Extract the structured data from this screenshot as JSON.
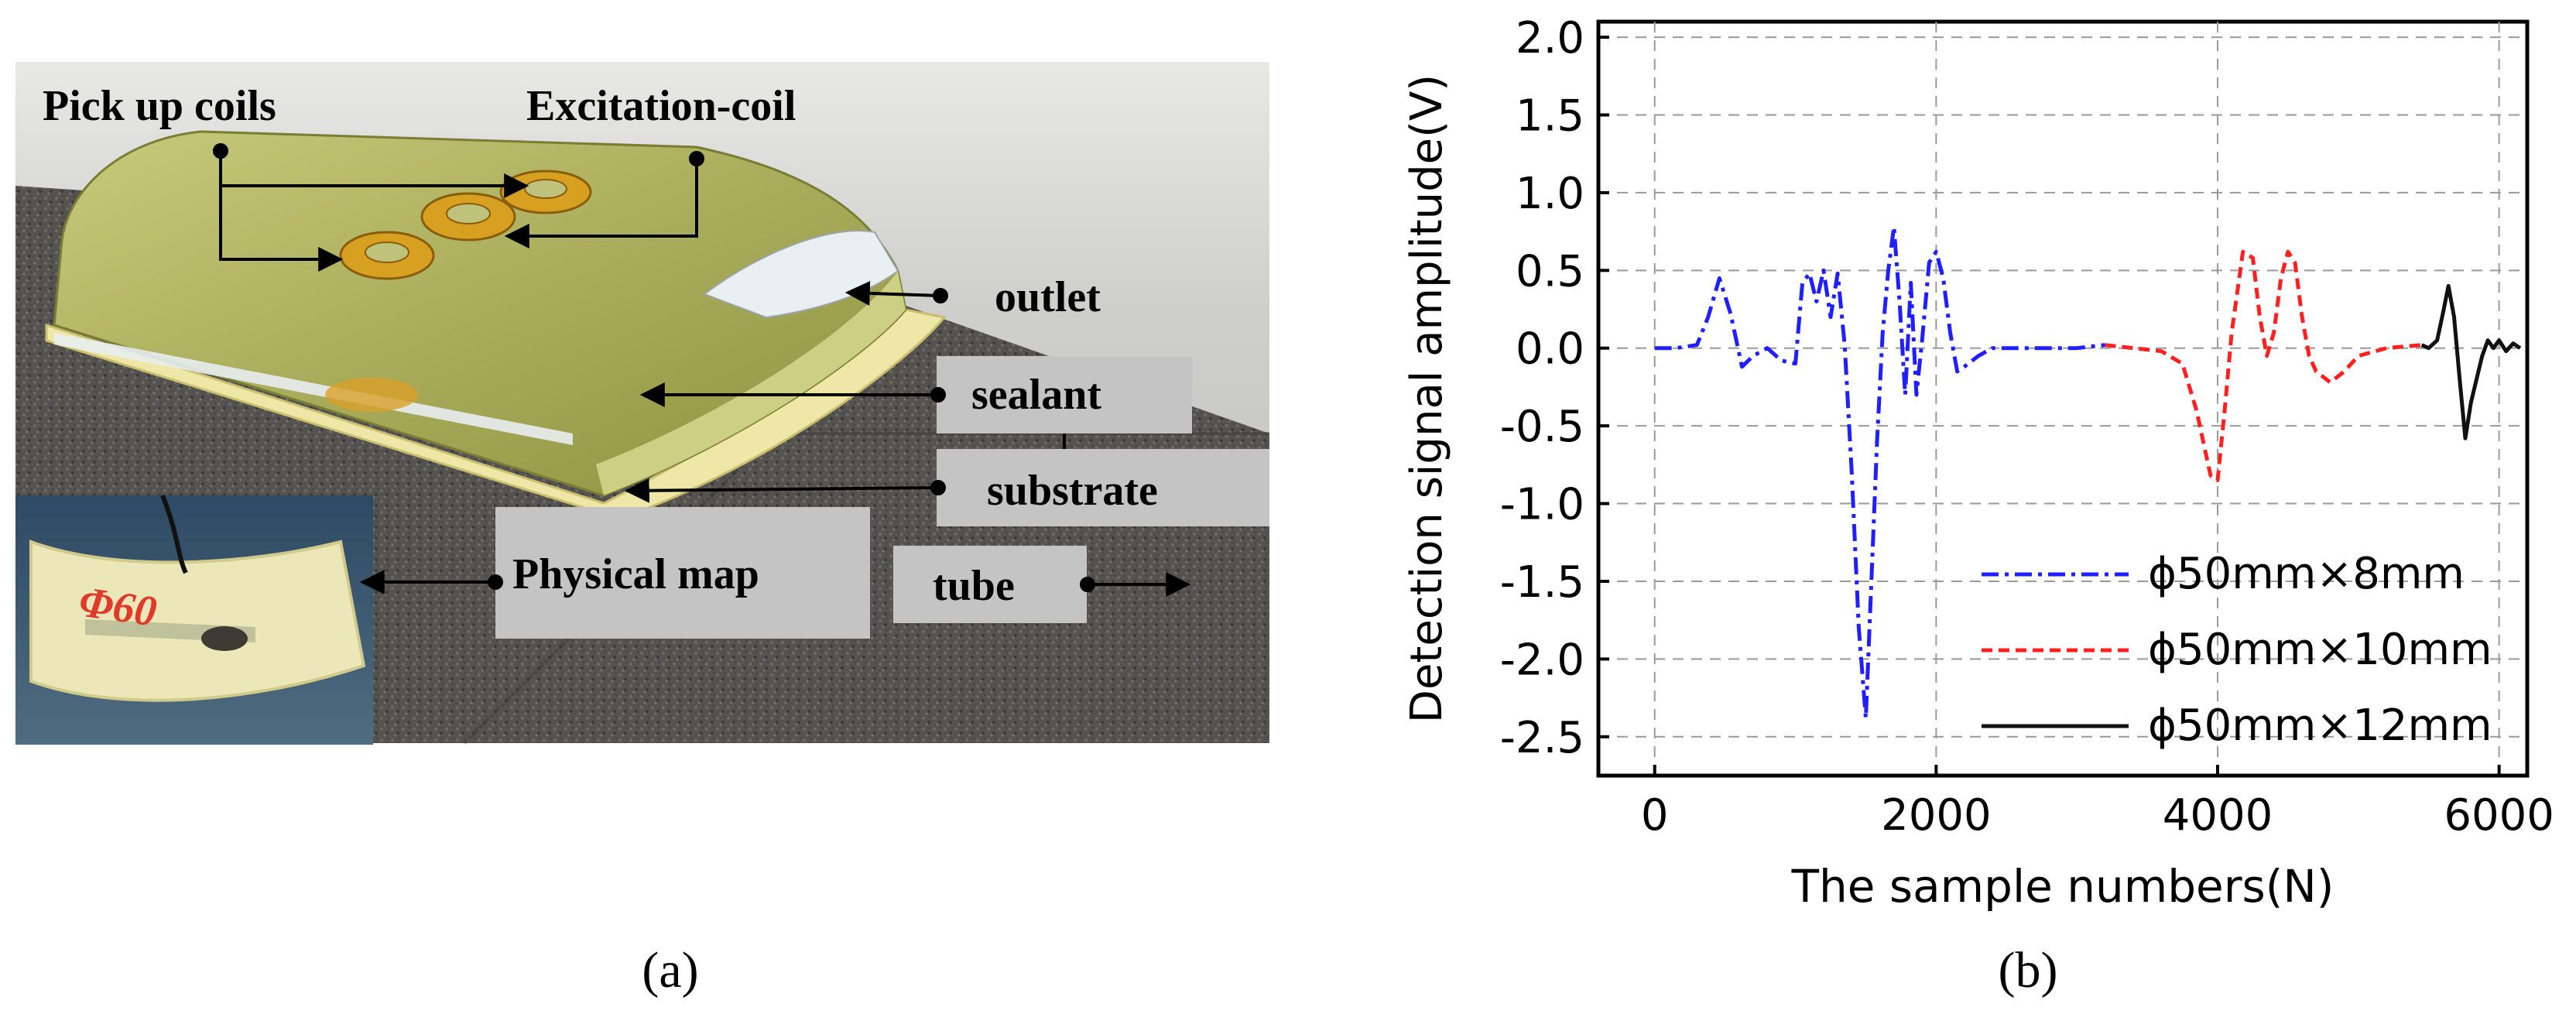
{
  "panel_a": {
    "caption": "(a)",
    "labels": {
      "pickup": "Pick up coils",
      "excitation": "Excitation-coil",
      "outlet": "outlet",
      "sealant": "sealant",
      "substrate": "substrate",
      "physical_map": "Physical map",
      "tube": "tube"
    },
    "photo_handwriting": "Φ60"
  },
  "panel_b": {
    "caption": "(b)"
  },
  "chart_data": {
    "type": "line",
    "title": "",
    "xlabel": "The sample numbers(N)",
    "ylabel": "Detection signal amplitude(V)",
    "xlim": [
      -400,
      6200
    ],
    "ylim": [
      -2.75,
      2.1
    ],
    "xticks": [
      0,
      2000,
      4000,
      6000
    ],
    "yticks": [
      2.0,
      1.5,
      1.0,
      0.5,
      0.0,
      -0.5,
      -1.0,
      -1.5,
      -2.0,
      -2.5
    ],
    "xtick_labels": [
      "0",
      "2000",
      "4000",
      "6000"
    ],
    "ytick_labels": [
      "2.0",
      "1.5",
      "1.0",
      "0.5",
      "0.0",
      "-0.5",
      "-1.0",
      "-1.5",
      "-2.0",
      "-2.5"
    ],
    "grid": true,
    "legend": "bottom-right",
    "series": [
      {
        "name": "ϕ50mm×8mm",
        "color": "#1f1fff",
        "style": "dashdot",
        "x": [
          0,
          150,
          300,
          380,
          460,
          540,
          620,
          700,
          800,
          900,
          1000,
          1050,
          1100,
          1150,
          1200,
          1250,
          1300,
          1350,
          1400,
          1450,
          1500,
          1540,
          1580,
          1620,
          1660,
          1700,
          1740,
          1780,
          1820,
          1860,
          1900,
          1950,
          2000,
          2050,
          2100,
          2150,
          2200,
          2300,
          2400,
          2600,
          2800,
          3000,
          3200
        ],
        "y": [
          0.0,
          0.0,
          0.02,
          0.2,
          0.45,
          0.22,
          -0.12,
          -0.05,
          0.0,
          -0.08,
          -0.1,
          0.42,
          0.48,
          0.3,
          0.5,
          0.2,
          0.48,
          0.02,
          -0.8,
          -1.8,
          -2.38,
          -1.5,
          -0.6,
          0.1,
          0.5,
          0.78,
          0.3,
          -0.3,
          0.42,
          -0.3,
          0.05,
          0.55,
          0.62,
          0.45,
          0.1,
          -0.15,
          -0.12,
          -0.05,
          0.0,
          0.0,
          0.0,
          0.0,
          0.02
        ]
      },
      {
        "name": "ϕ50mm×10mm",
        "color": "#ff2020",
        "style": "dash",
        "x": [
          3200,
          3400,
          3600,
          3750,
          3850,
          3950,
          4000,
          4050,
          4100,
          4180,
          4250,
          4300,
          4350,
          4400,
          4450,
          4500,
          4550,
          4600,
          4650,
          4700,
          4800,
          4900,
          5000,
          5200,
          5450
        ],
        "y": [
          0.02,
          0.0,
          -0.02,
          -0.1,
          -0.4,
          -0.82,
          -0.85,
          -0.4,
          0.1,
          0.62,
          0.58,
          0.2,
          -0.05,
          0.1,
          0.45,
          0.62,
          0.55,
          0.2,
          -0.05,
          -0.15,
          -0.22,
          -0.15,
          -0.05,
          0.0,
          0.02
        ]
      },
      {
        "name": "ϕ50mm×12mm",
        "color": "#111111",
        "style": "solid",
        "x": [
          5450,
          5500,
          5560,
          5600,
          5640,
          5680,
          5720,
          5760,
          5800,
          5840,
          5880,
          5920,
          5960,
          6000,
          6050,
          6100,
          6150
        ],
        "y": [
          0.02,
          0.0,
          0.05,
          0.22,
          0.4,
          0.2,
          -0.2,
          -0.58,
          -0.35,
          -0.2,
          -0.05,
          0.05,
          0.0,
          0.05,
          -0.02,
          0.03,
          0.0
        ]
      }
    ]
  }
}
